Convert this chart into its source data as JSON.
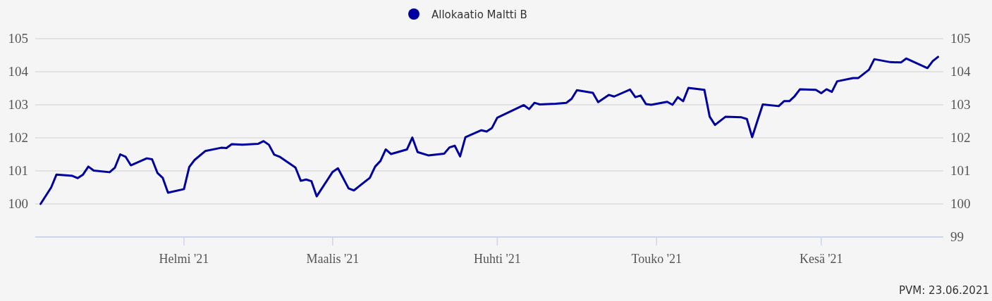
{
  "chart_data": {
    "type": "line",
    "legend": "top",
    "grid": "y",
    "annotations": [
      "PVM: 23.06.2021"
    ],
    "xlim": [
      "2021-01-04",
      "2021-06-24"
    ],
    "xticks": [
      {
        "value": "2021-02-01",
        "label": "Helmi '21"
      },
      {
        "value": "2021-03-01",
        "label": "Maalis '21"
      },
      {
        "value": "2021-04-01",
        "label": "Huhti '21"
      },
      {
        "value": "2021-05-01",
        "label": "Touko '21"
      },
      {
        "value": "2021-06-01",
        "label": "Kesä '21"
      }
    ],
    "ylim": [
      99,
      105
    ],
    "yticks": [
      100,
      101,
      102,
      103,
      104,
      105
    ],
    "y2lim": [
      99,
      105
    ],
    "y2ticks": [
      99,
      100,
      101,
      102,
      103,
      104,
      105
    ],
    "x": [
      "2021-01-05",
      "2021-01-07",
      "2021-01-08",
      "2021-01-11",
      "2021-01-12",
      "2021-01-13",
      "2021-01-14",
      "2021-01-15",
      "2021-01-18",
      "2021-01-19",
      "2021-01-20",
      "2021-01-21",
      "2021-01-22",
      "2021-01-25",
      "2021-01-26",
      "2021-01-27",
      "2021-01-28",
      "2021-01-29",
      "2021-02-01",
      "2021-02-02",
      "2021-02-03",
      "2021-02-05",
      "2021-02-08",
      "2021-02-09",
      "2021-02-10",
      "2021-02-12",
      "2021-02-15",
      "2021-02-16",
      "2021-02-17",
      "2021-02-18",
      "2021-02-19",
      "2021-02-22",
      "2021-02-23",
      "2021-02-24",
      "2021-02-25",
      "2021-02-26",
      "2021-03-01",
      "2021-03-02",
      "2021-03-04",
      "2021-03-05",
      "2021-03-08",
      "2021-03-09",
      "2021-03-10",
      "2021-03-11",
      "2021-03-12",
      "2021-03-15",
      "2021-03-16",
      "2021-03-17",
      "2021-03-19",
      "2021-03-22",
      "2021-03-23",
      "2021-03-24",
      "2021-03-25",
      "2021-03-26",
      "2021-03-29",
      "2021-03-30",
      "2021-03-31",
      "2021-04-01",
      "2021-04-06",
      "2021-04-07",
      "2021-04-08",
      "2021-04-09",
      "2021-04-12",
      "2021-04-14",
      "2021-04-15",
      "2021-04-16",
      "2021-04-19",
      "2021-04-20",
      "2021-04-22",
      "2021-04-23",
      "2021-04-26",
      "2021-04-27",
      "2021-04-28",
      "2021-04-29",
      "2021-04-30",
      "2021-05-03",
      "2021-05-04",
      "2021-05-05",
      "2021-05-06",
      "2021-05-07",
      "2021-05-10",
      "2021-05-11",
      "2021-05-12",
      "2021-05-14",
      "2021-05-17",
      "2021-05-18",
      "2021-05-19",
      "2021-05-20",
      "2021-05-21",
      "2021-05-24",
      "2021-05-25",
      "2021-05-26",
      "2021-05-27",
      "2021-05-28",
      "2021-05-31",
      "2021-06-01",
      "2021-06-02",
      "2021-06-03",
      "2021-06-04",
      "2021-06-07",
      "2021-06-08",
      "2021-06-10",
      "2021-06-11",
      "2021-06-14",
      "2021-06-16",
      "2021-06-17",
      "2021-06-21",
      "2021-06-22",
      "2021-06-23"
    ],
    "series": [
      {
        "name": "Allokaatio Maltti B",
        "color": "#0000a0",
        "values": [
          100.0,
          100.5,
          100.89,
          100.85,
          100.78,
          100.89,
          101.13,
          101.01,
          100.96,
          101.1,
          101.5,
          101.43,
          101.17,
          101.38,
          101.35,
          100.94,
          100.79,
          100.34,
          100.45,
          101.12,
          101.33,
          101.6,
          101.7,
          101.69,
          101.81,
          101.79,
          101.82,
          101.9,
          101.79,
          101.49,
          101.43,
          101.1,
          100.7,
          100.74,
          100.69,
          100.23,
          100.97,
          101.08,
          100.47,
          100.41,
          100.79,
          101.13,
          101.3,
          101.65,
          101.51,
          101.65,
          102.01,
          101.57,
          101.47,
          101.52,
          101.71,
          101.76,
          101.44,
          102.02,
          102.23,
          102.19,
          102.3,
          102.61,
          102.99,
          102.87,
          103.06,
          103.01,
          103.03,
          103.06,
          103.18,
          103.44,
          103.36,
          103.08,
          103.3,
          103.25,
          103.46,
          103.23,
          103.28,
          103.02,
          103.0,
          103.09,
          103.0,
          103.23,
          103.11,
          103.51,
          103.45,
          102.64,
          102.39,
          102.64,
          102.62,
          102.57,
          102.02,
          102.52,
          103.01,
          102.96,
          103.11,
          103.11,
          103.26,
          103.47,
          103.45,
          103.35,
          103.47,
          103.39,
          103.71,
          103.81,
          103.81,
          104.06,
          104.38,
          104.29,
          104.28,
          104.4,
          104.11,
          104.32,
          104.45
        ]
      }
    ]
  }
}
